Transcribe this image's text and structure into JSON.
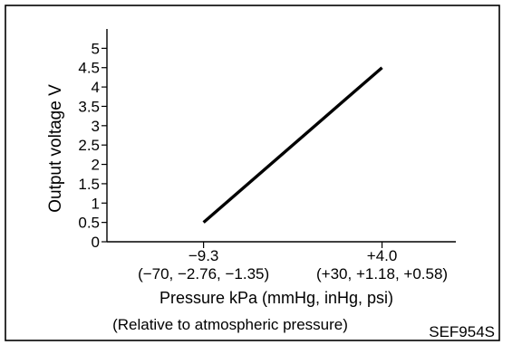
{
  "chart_data": {
    "type": "line",
    "ylabel": "Output voltage V",
    "xlabel": "Pressure kPa (mmHg, inHg, psi)",
    "xnote": "(Relative to atmospheric pressure)",
    "figure_code": "SEF954S",
    "y_ticks": [
      "0",
      "0.5",
      "1",
      "1.5",
      "2",
      "2.5",
      "3",
      "3.5",
      "4",
      "4.5",
      "5"
    ],
    "ylim": [
      0,
      5.5
    ],
    "xlim": [
      -16.5,
      9.5
    ],
    "x_ticks": [
      {
        "value": -9.3,
        "label": "−9.3",
        "sublabel": "(−70, −2.76, −1.35)"
      },
      {
        "value": 4.0,
        "label": "+4.0",
        "sublabel": "(+30, +1.18, +0.58)"
      }
    ],
    "series": [
      {
        "x": [
          -9.3,
          4.0
        ],
        "y": [
          0.5,
          4.5
        ]
      }
    ],
    "grid": false
  }
}
